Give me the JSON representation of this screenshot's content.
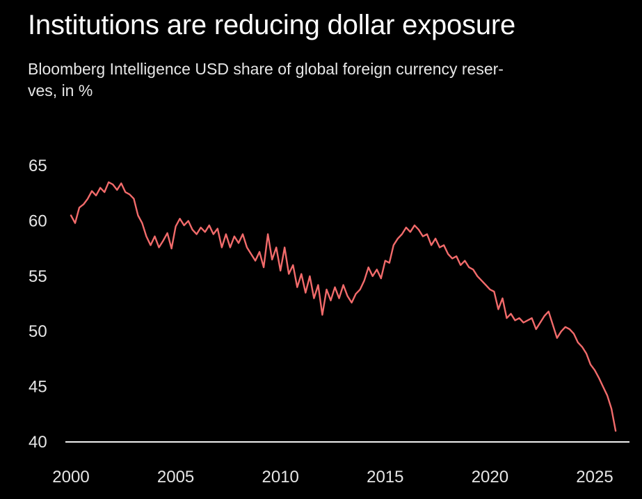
{
  "chart_data": {
    "type": "line",
    "title": "Institutions are reducing dollar exposure",
    "subtitle": "Bloomberg Intelligence USD share of global foreign currency reser-ves, in %",
    "subtitle_lines": [
      "Bloomberg Intelligence USD share of global foreign currency reser-",
      "ves, in %"
    ],
    "xlabel": "",
    "ylabel": "",
    "xlim": [
      2000,
      2026.2
    ],
    "ylim": [
      40,
      65
    ],
    "x_ticks": [
      2000,
      2005,
      2010,
      2015,
      2020,
      2025
    ],
    "y_ticks": [
      40,
      45,
      50,
      55,
      60,
      65
    ],
    "grid": false,
    "legend": "none",
    "series": [
      {
        "color": "#f26b6b",
        "points": [
          [
            2000.0,
            60.5
          ],
          [
            2000.2,
            59.8
          ],
          [
            2000.4,
            61.2
          ],
          [
            2000.6,
            61.5
          ],
          [
            2000.8,
            62.0
          ],
          [
            2001.0,
            62.7
          ],
          [
            2001.2,
            62.3
          ],
          [
            2001.4,
            63.0
          ],
          [
            2001.6,
            62.6
          ],
          [
            2001.8,
            63.5
          ],
          [
            2002.0,
            63.3
          ],
          [
            2002.2,
            62.8
          ],
          [
            2002.4,
            63.4
          ],
          [
            2002.6,
            62.6
          ],
          [
            2002.8,
            62.4
          ],
          [
            2003.0,
            62.0
          ],
          [
            2003.2,
            60.5
          ],
          [
            2003.4,
            59.8
          ],
          [
            2003.6,
            58.6
          ],
          [
            2003.8,
            57.8
          ],
          [
            2004.0,
            58.6
          ],
          [
            2004.2,
            57.6
          ],
          [
            2004.4,
            58.2
          ],
          [
            2004.6,
            58.9
          ],
          [
            2004.8,
            57.5
          ],
          [
            2005.0,
            59.5
          ],
          [
            2005.2,
            60.2
          ],
          [
            2005.4,
            59.6
          ],
          [
            2005.6,
            60.0
          ],
          [
            2005.8,
            59.2
          ],
          [
            2006.0,
            58.8
          ],
          [
            2006.2,
            59.4
          ],
          [
            2006.4,
            59.0
          ],
          [
            2006.6,
            59.6
          ],
          [
            2006.8,
            58.8
          ],
          [
            2007.0,
            59.3
          ],
          [
            2007.2,
            57.6
          ],
          [
            2007.4,
            58.8
          ],
          [
            2007.6,
            57.6
          ],
          [
            2007.8,
            58.6
          ],
          [
            2008.0,
            58.0
          ],
          [
            2008.2,
            58.8
          ],
          [
            2008.4,
            57.6
          ],
          [
            2008.6,
            57.0
          ],
          [
            2008.8,
            56.4
          ],
          [
            2009.0,
            57.2
          ],
          [
            2009.2,
            55.8
          ],
          [
            2009.4,
            58.8
          ],
          [
            2009.6,
            56.5
          ],
          [
            2009.8,
            57.6
          ],
          [
            2010.0,
            55.5
          ],
          [
            2010.2,
            57.6
          ],
          [
            2010.4,
            55.2
          ],
          [
            2010.6,
            56.0
          ],
          [
            2010.8,
            54.0
          ],
          [
            2011.0,
            55.2
          ],
          [
            2011.2,
            53.5
          ],
          [
            2011.4,
            55.0
          ],
          [
            2011.6,
            53.0
          ],
          [
            2011.8,
            54.2
          ],
          [
            2012.0,
            51.5
          ],
          [
            2012.2,
            53.8
          ],
          [
            2012.4,
            52.8
          ],
          [
            2012.6,
            54.0
          ],
          [
            2012.8,
            53.0
          ],
          [
            2013.0,
            54.2
          ],
          [
            2013.2,
            53.2
          ],
          [
            2013.4,
            52.6
          ],
          [
            2013.6,
            53.4
          ],
          [
            2013.8,
            53.8
          ],
          [
            2014.0,
            54.6
          ],
          [
            2014.2,
            55.8
          ],
          [
            2014.4,
            55.0
          ],
          [
            2014.6,
            55.6
          ],
          [
            2014.8,
            54.8
          ],
          [
            2015.0,
            56.4
          ],
          [
            2015.2,
            56.2
          ],
          [
            2015.4,
            57.8
          ],
          [
            2015.6,
            58.4
          ],
          [
            2015.8,
            58.8
          ],
          [
            2016.0,
            59.4
          ],
          [
            2016.2,
            59.0
          ],
          [
            2016.4,
            59.6
          ],
          [
            2016.6,
            59.2
          ],
          [
            2016.8,
            58.6
          ],
          [
            2017.0,
            58.8
          ],
          [
            2017.2,
            57.8
          ],
          [
            2017.4,
            58.4
          ],
          [
            2017.6,
            57.6
          ],
          [
            2017.8,
            57.8
          ],
          [
            2018.0,
            57.0
          ],
          [
            2018.2,
            56.6
          ],
          [
            2018.4,
            56.8
          ],
          [
            2018.6,
            56.0
          ],
          [
            2018.8,
            56.4
          ],
          [
            2019.0,
            55.8
          ],
          [
            2019.2,
            55.6
          ],
          [
            2019.4,
            55.0
          ],
          [
            2019.6,
            54.6
          ],
          [
            2019.8,
            54.2
          ],
          [
            2020.0,
            53.8
          ],
          [
            2020.2,
            53.6
          ],
          [
            2020.4,
            52.0
          ],
          [
            2020.6,
            53.0
          ],
          [
            2020.8,
            51.2
          ],
          [
            2021.0,
            51.6
          ],
          [
            2021.2,
            51.0
          ],
          [
            2021.4,
            51.2
          ],
          [
            2021.6,
            50.8
          ],
          [
            2021.8,
            51.0
          ],
          [
            2022.0,
            51.2
          ],
          [
            2022.2,
            50.2
          ],
          [
            2022.4,
            50.8
          ],
          [
            2022.6,
            51.4
          ],
          [
            2022.8,
            51.8
          ],
          [
            2023.0,
            50.6
          ],
          [
            2023.2,
            49.4
          ],
          [
            2023.4,
            50.0
          ],
          [
            2023.6,
            50.4
          ],
          [
            2023.8,
            50.2
          ],
          [
            2024.0,
            49.8
          ],
          [
            2024.2,
            49.0
          ],
          [
            2024.4,
            48.6
          ],
          [
            2024.6,
            48.0
          ],
          [
            2024.8,
            47.0
          ],
          [
            2025.0,
            46.5
          ],
          [
            2025.2,
            45.8
          ],
          [
            2025.4,
            45.0
          ],
          [
            2025.6,
            44.2
          ],
          [
            2025.8,
            43.0
          ],
          [
            2026.0,
            41.0
          ]
        ]
      }
    ]
  },
  "colors": {
    "background": "#000000",
    "line": "#f26b6b",
    "axis": "#f0f0f0",
    "text": "#ffffff",
    "subtext": "#e6e6e6"
  }
}
